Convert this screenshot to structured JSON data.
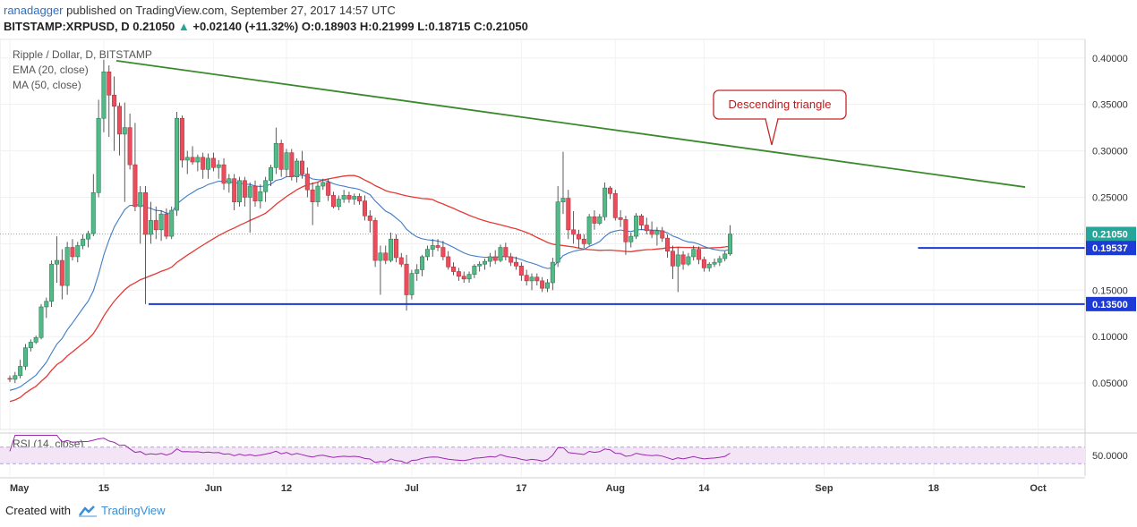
{
  "header": {
    "author": "ranadagger",
    "published": "published on TradingView.com, September 27, 2017 14:57 UTC",
    "symbol": "BITSTAMP:XRPUSD, D",
    "last": "0.21050",
    "change": "+0.02140 (+11.32%)",
    "ohlc_o_label": "O:",
    "ohlc_o": "0.18903",
    "ohlc_h_label": "H:",
    "ohlc_h": "0.21999",
    "ohlc_l_label": "L:",
    "ohlc_l": "0.18715",
    "ohlc_c_label": "C:",
    "ohlc_c": "0.21050"
  },
  "legend": {
    "title": "Ripple / Dollar, D, BITSTAMP",
    "ema": "EMA (20, close)",
    "ma": "MA (50, close)"
  },
  "rsi": {
    "label": "RSI (14, close)",
    "tick": "50.0000"
  },
  "footer": {
    "created_with": "Created with",
    "brand": "TradingView"
  },
  "colors": {
    "up": "#26a69a",
    "down": "#ef5350",
    "ema": "#3d7cc9",
    "ma": "#e53935",
    "trendline": "#3a8a2c",
    "support": "#1c3ad6",
    "rsi": "#9c27b0",
    "rsi_band": "#f3e5f5",
    "candle_up_fill": "#53b987",
    "candle_down_fill": "#eb4d5c"
  },
  "chart_data": {
    "type": "candlestick",
    "title": "Ripple / Dollar, D, BITSTAMP",
    "x_ticks": [
      "May",
      "15",
      "Jun",
      "12",
      "Jul",
      "17",
      "Aug",
      "14",
      "Sep",
      "18",
      "Oct"
    ],
    "y_ticks": [
      "0.40000",
      "0.35000",
      "0.30000",
      "0.25000",
      "0.20000",
      "0.15000",
      "0.10000",
      "0.05000"
    ],
    "y_range": [
      0.0,
      0.42
    ],
    "price_labels": [
      {
        "value": 0.2105,
        "text": "0.21050",
        "color": "#26a69a"
      },
      {
        "value": 0.19537,
        "text": "0.19537",
        "color": "#1c3ad6"
      },
      {
        "value": 0.135,
        "text": "0.13500",
        "color": "#1c3ad6"
      }
    ],
    "annotation": "Descending triangle",
    "levels": [
      {
        "name": "resistance",
        "value": 0.19537
      },
      {
        "name": "support",
        "value": 0.135
      }
    ],
    "trendline": {
      "start": [
        "2017-05-17",
        0.397
      ],
      "end": [
        "2017-09-26",
        0.261
      ]
    },
    "candles": [
      {
        "o": 0.055,
        "h": 0.058,
        "l": 0.051,
        "c": 0.054
      },
      {
        "o": 0.054,
        "h": 0.062,
        "l": 0.05,
        "c": 0.058
      },
      {
        "o": 0.058,
        "h": 0.075,
        "l": 0.055,
        "c": 0.068
      },
      {
        "o": 0.068,
        "h": 0.092,
        "l": 0.064,
        "c": 0.088
      },
      {
        "o": 0.088,
        "h": 0.097,
        "l": 0.084,
        "c": 0.094
      },
      {
        "o": 0.094,
        "h": 0.101,
        "l": 0.092,
        "c": 0.099
      },
      {
        "o": 0.099,
        "h": 0.135,
        "l": 0.097,
        "c": 0.132
      },
      {
        "o": 0.132,
        "h": 0.142,
        "l": 0.12,
        "c": 0.138
      },
      {
        "o": 0.138,
        "h": 0.182,
        "l": 0.132,
        "c": 0.178
      },
      {
        "o": 0.178,
        "h": 0.208,
        "l": 0.158,
        "c": 0.182
      },
      {
        "o": 0.182,
        "h": 0.194,
        "l": 0.14,
        "c": 0.155
      },
      {
        "o": 0.155,
        "h": 0.202,
        "l": 0.145,
        "c": 0.196
      },
      {
        "o": 0.196,
        "h": 0.205,
        "l": 0.182,
        "c": 0.186
      },
      {
        "o": 0.186,
        "h": 0.202,
        "l": 0.18,
        "c": 0.198
      },
      {
        "o": 0.198,
        "h": 0.21,
        "l": 0.194,
        "c": 0.205
      },
      {
        "o": 0.205,
        "h": 0.214,
        "l": 0.196,
        "c": 0.211
      },
      {
        "o": 0.211,
        "h": 0.275,
        "l": 0.208,
        "c": 0.255
      },
      {
        "o": 0.255,
        "h": 0.355,
        "l": 0.25,
        "c": 0.335
      },
      {
        "o": 0.335,
        "h": 0.398,
        "l": 0.32,
        "c": 0.385
      },
      {
        "o": 0.385,
        "h": 0.392,
        "l": 0.315,
        "c": 0.36
      },
      {
        "o": 0.36,
        "h": 0.38,
        "l": 0.3,
        "c": 0.348
      },
      {
        "o": 0.348,
        "h": 0.352,
        "l": 0.295,
        "c": 0.318
      },
      {
        "o": 0.318,
        "h": 0.352,
        "l": 0.245,
        "c": 0.325
      },
      {
        "o": 0.325,
        "h": 0.34,
        "l": 0.28,
        "c": 0.285
      },
      {
        "o": 0.285,
        "h": 0.33,
        "l": 0.235,
        "c": 0.24
      },
      {
        "o": 0.24,
        "h": 0.262,
        "l": 0.2,
        "c": 0.255
      },
      {
        "o": 0.255,
        "h": 0.262,
        "l": 0.135,
        "c": 0.21
      },
      {
        "o": 0.21,
        "h": 0.245,
        "l": 0.2,
        "c": 0.225
      },
      {
        "o": 0.225,
        "h": 0.24,
        "l": 0.205,
        "c": 0.215
      },
      {
        "o": 0.215,
        "h": 0.236,
        "l": 0.203,
        "c": 0.232
      },
      {
        "o": 0.232,
        "h": 0.238,
        "l": 0.205,
        "c": 0.208
      },
      {
        "o": 0.208,
        "h": 0.24,
        "l": 0.205,
        "c": 0.236
      },
      {
        "o": 0.236,
        "h": 0.342,
        "l": 0.23,
        "c": 0.335
      },
      {
        "o": 0.335,
        "h": 0.338,
        "l": 0.282,
        "c": 0.29
      },
      {
        "o": 0.29,
        "h": 0.3,
        "l": 0.275,
        "c": 0.293
      },
      {
        "o": 0.293,
        "h": 0.305,
        "l": 0.285,
        "c": 0.288
      },
      {
        "o": 0.288,
        "h": 0.296,
        "l": 0.278,
        "c": 0.293
      },
      {
        "o": 0.293,
        "h": 0.298,
        "l": 0.27,
        "c": 0.28
      },
      {
        "o": 0.28,
        "h": 0.297,
        "l": 0.27,
        "c": 0.292
      },
      {
        "o": 0.292,
        "h": 0.298,
        "l": 0.278,
        "c": 0.282
      },
      {
        "o": 0.282,
        "h": 0.29,
        "l": 0.27,
        "c": 0.285
      },
      {
        "o": 0.285,
        "h": 0.292,
        "l": 0.258,
        "c": 0.265
      },
      {
        "o": 0.265,
        "h": 0.275,
        "l": 0.255,
        "c": 0.27
      },
      {
        "o": 0.27,
        "h": 0.275,
        "l": 0.236,
        "c": 0.245
      },
      {
        "o": 0.245,
        "h": 0.272,
        "l": 0.24,
        "c": 0.268
      },
      {
        "o": 0.268,
        "h": 0.272,
        "l": 0.24,
        "c": 0.25
      },
      {
        "o": 0.25,
        "h": 0.266,
        "l": 0.212,
        "c": 0.262
      },
      {
        "o": 0.262,
        "h": 0.268,
        "l": 0.24,
        "c": 0.246
      },
      {
        "o": 0.246,
        "h": 0.264,
        "l": 0.238,
        "c": 0.256
      },
      {
        "o": 0.256,
        "h": 0.272,
        "l": 0.245,
        "c": 0.268
      },
      {
        "o": 0.268,
        "h": 0.285,
        "l": 0.262,
        "c": 0.282
      },
      {
        "o": 0.282,
        "h": 0.325,
        "l": 0.275,
        "c": 0.308
      },
      {
        "o": 0.308,
        "h": 0.312,
        "l": 0.272,
        "c": 0.28
      },
      {
        "o": 0.28,
        "h": 0.302,
        "l": 0.272,
        "c": 0.298
      },
      {
        "o": 0.298,
        "h": 0.302,
        "l": 0.268,
        "c": 0.272
      },
      {
        "o": 0.272,
        "h": 0.292,
        "l": 0.266,
        "c": 0.289
      },
      {
        "o": 0.289,
        "h": 0.3,
        "l": 0.27,
        "c": 0.275
      },
      {
        "o": 0.275,
        "h": 0.282,
        "l": 0.25,
        "c": 0.258
      },
      {
        "o": 0.258,
        "h": 0.266,
        "l": 0.22,
        "c": 0.245
      },
      {
        "o": 0.245,
        "h": 0.266,
        "l": 0.24,
        "c": 0.262
      },
      {
        "o": 0.262,
        "h": 0.27,
        "l": 0.258,
        "c": 0.266
      },
      {
        "o": 0.266,
        "h": 0.27,
        "l": 0.246,
        "c": 0.252
      },
      {
        "o": 0.252,
        "h": 0.256,
        "l": 0.238,
        "c": 0.24
      },
      {
        "o": 0.24,
        "h": 0.252,
        "l": 0.236,
        "c": 0.248
      },
      {
        "o": 0.248,
        "h": 0.258,
        "l": 0.244,
        "c": 0.252
      },
      {
        "o": 0.252,
        "h": 0.256,
        "l": 0.244,
        "c": 0.248
      },
      {
        "o": 0.248,
        "h": 0.254,
        "l": 0.242,
        "c": 0.251
      },
      {
        "o": 0.251,
        "h": 0.254,
        "l": 0.242,
        "c": 0.246
      },
      {
        "o": 0.246,
        "h": 0.252,
        "l": 0.225,
        "c": 0.23
      },
      {
        "o": 0.23,
        "h": 0.236,
        "l": 0.212,
        "c": 0.225
      },
      {
        "o": 0.225,
        "h": 0.228,
        "l": 0.175,
        "c": 0.182
      },
      {
        "o": 0.182,
        "h": 0.198,
        "l": 0.145,
        "c": 0.19
      },
      {
        "o": 0.19,
        "h": 0.198,
        "l": 0.178,
        "c": 0.182
      },
      {
        "o": 0.182,
        "h": 0.212,
        "l": 0.18,
        "c": 0.205
      },
      {
        "o": 0.205,
        "h": 0.21,
        "l": 0.18,
        "c": 0.185
      },
      {
        "o": 0.185,
        "h": 0.19,
        "l": 0.175,
        "c": 0.178
      },
      {
        "o": 0.178,
        "h": 0.188,
        "l": 0.128,
        "c": 0.145
      },
      {
        "o": 0.145,
        "h": 0.172,
        "l": 0.14,
        "c": 0.168
      },
      {
        "o": 0.168,
        "h": 0.178,
        "l": 0.16,
        "c": 0.172
      },
      {
        "o": 0.172,
        "h": 0.188,
        "l": 0.165,
        "c": 0.186
      },
      {
        "o": 0.186,
        "h": 0.198,
        "l": 0.182,
        "c": 0.194
      },
      {
        "o": 0.194,
        "h": 0.205,
        "l": 0.186,
        "c": 0.198
      },
      {
        "o": 0.198,
        "h": 0.205,
        "l": 0.192,
        "c": 0.196
      },
      {
        "o": 0.196,
        "h": 0.203,
        "l": 0.182,
        "c": 0.186
      },
      {
        "o": 0.186,
        "h": 0.192,
        "l": 0.172,
        "c": 0.175
      },
      {
        "o": 0.175,
        "h": 0.18,
        "l": 0.166,
        "c": 0.17
      },
      {
        "o": 0.17,
        "h": 0.174,
        "l": 0.16,
        "c": 0.165
      },
      {
        "o": 0.165,
        "h": 0.17,
        "l": 0.158,
        "c": 0.162
      },
      {
        "o": 0.162,
        "h": 0.17,
        "l": 0.158,
        "c": 0.167
      },
      {
        "o": 0.167,
        "h": 0.178,
        "l": 0.163,
        "c": 0.176
      },
      {
        "o": 0.176,
        "h": 0.181,
        "l": 0.17,
        "c": 0.178
      },
      {
        "o": 0.178,
        "h": 0.184,
        "l": 0.172,
        "c": 0.181
      },
      {
        "o": 0.181,
        "h": 0.19,
        "l": 0.175,
        "c": 0.186
      },
      {
        "o": 0.186,
        "h": 0.193,
        "l": 0.178,
        "c": 0.182
      },
      {
        "o": 0.182,
        "h": 0.199,
        "l": 0.18,
        "c": 0.196
      },
      {
        "o": 0.196,
        "h": 0.201,
        "l": 0.182,
        "c": 0.186
      },
      {
        "o": 0.186,
        "h": 0.19,
        "l": 0.176,
        "c": 0.18
      },
      {
        "o": 0.18,
        "h": 0.186,
        "l": 0.172,
        "c": 0.176
      },
      {
        "o": 0.176,
        "h": 0.18,
        "l": 0.16,
        "c": 0.166
      },
      {
        "o": 0.166,
        "h": 0.172,
        "l": 0.155,
        "c": 0.16
      },
      {
        "o": 0.16,
        "h": 0.168,
        "l": 0.15,
        "c": 0.164
      },
      {
        "o": 0.164,
        "h": 0.168,
        "l": 0.155,
        "c": 0.16
      },
      {
        "o": 0.16,
        "h": 0.164,
        "l": 0.148,
        "c": 0.152
      },
      {
        "o": 0.152,
        "h": 0.162,
        "l": 0.148,
        "c": 0.158
      },
      {
        "o": 0.158,
        "h": 0.185,
        "l": 0.15,
        "c": 0.18
      },
      {
        "o": 0.18,
        "h": 0.262,
        "l": 0.175,
        "c": 0.245
      },
      {
        "o": 0.245,
        "h": 0.299,
        "l": 0.232,
        "c": 0.249
      },
      {
        "o": 0.249,
        "h": 0.258,
        "l": 0.205,
        "c": 0.215
      },
      {
        "o": 0.215,
        "h": 0.235,
        "l": 0.2,
        "c": 0.21
      },
      {
        "o": 0.21,
        "h": 0.215,
        "l": 0.195,
        "c": 0.205
      },
      {
        "o": 0.205,
        "h": 0.21,
        "l": 0.195,
        "c": 0.2
      },
      {
        "o": 0.2,
        "h": 0.232,
        "l": 0.198,
        "c": 0.229
      },
      {
        "o": 0.229,
        "h": 0.236,
        "l": 0.215,
        "c": 0.222
      },
      {
        "o": 0.222,
        "h": 0.232,
        "l": 0.22,
        "c": 0.229
      },
      {
        "o": 0.229,
        "h": 0.266,
        "l": 0.225,
        "c": 0.26
      },
      {
        "o": 0.26,
        "h": 0.262,
        "l": 0.248,
        "c": 0.254
      },
      {
        "o": 0.254,
        "h": 0.258,
        "l": 0.225,
        "c": 0.228
      },
      {
        "o": 0.228,
        "h": 0.236,
        "l": 0.218,
        "c": 0.226
      },
      {
        "o": 0.226,
        "h": 0.23,
        "l": 0.188,
        "c": 0.202
      },
      {
        "o": 0.202,
        "h": 0.212,
        "l": 0.196,
        "c": 0.208
      },
      {
        "o": 0.208,
        "h": 0.233,
        "l": 0.205,
        "c": 0.23
      },
      {
        "o": 0.23,
        "h": 0.232,
        "l": 0.215,
        "c": 0.22
      },
      {
        "o": 0.22,
        "h": 0.228,
        "l": 0.21,
        "c": 0.214
      },
      {
        "o": 0.214,
        "h": 0.224,
        "l": 0.206,
        "c": 0.21
      },
      {
        "o": 0.21,
        "h": 0.218,
        "l": 0.198,
        "c": 0.214
      },
      {
        "o": 0.214,
        "h": 0.218,
        "l": 0.202,
        "c": 0.206
      },
      {
        "o": 0.206,
        "h": 0.21,
        "l": 0.185,
        "c": 0.192
      },
      {
        "o": 0.192,
        "h": 0.198,
        "l": 0.162,
        "c": 0.176
      },
      {
        "o": 0.176,
        "h": 0.196,
        "l": 0.148,
        "c": 0.188
      },
      {
        "o": 0.188,
        "h": 0.192,
        "l": 0.172,
        "c": 0.178
      },
      {
        "o": 0.178,
        "h": 0.19,
        "l": 0.176,
        "c": 0.186
      },
      {
        "o": 0.186,
        "h": 0.198,
        "l": 0.182,
        "c": 0.194
      },
      {
        "o": 0.194,
        "h": 0.197,
        "l": 0.178,
        "c": 0.183
      },
      {
        "o": 0.183,
        "h": 0.186,
        "l": 0.17,
        "c": 0.174
      },
      {
        "o": 0.174,
        "h": 0.18,
        "l": 0.17,
        "c": 0.178
      },
      {
        "o": 0.178,
        "h": 0.184,
        "l": 0.175,
        "c": 0.18
      },
      {
        "o": 0.18,
        "h": 0.187,
        "l": 0.176,
        "c": 0.184
      },
      {
        "o": 0.184,
        "h": 0.192,
        "l": 0.181,
        "c": 0.189
      },
      {
        "o": 0.189,
        "h": 0.22,
        "l": 0.187,
        "c": 0.2105
      }
    ],
    "rsi_range": [
      0,
      100
    ]
  }
}
